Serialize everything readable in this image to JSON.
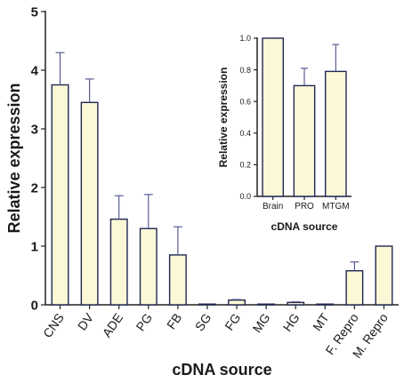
{
  "chart_data": [
    {
      "type": "bar",
      "categories": [
        "CNS",
        "DV",
        "ADE",
        "PG",
        "FB",
        "SG",
        "FG",
        "MG",
        "HG",
        "MT",
        "F. Repro",
        "M. Repro"
      ],
      "values": [
        3.75,
        3.45,
        1.46,
        1.3,
        0.85,
        0.01,
        0.08,
        0.01,
        0.04,
        0.005,
        0.58,
        1.0
      ],
      "error_upper": [
        4.3,
        3.85,
        1.86,
        1.88,
        1.33,
        0.01,
        0.09,
        0.01,
        0.05,
        0.005,
        0.73,
        1.0
      ],
      "title": "",
      "xlabel": "cDNA source",
      "ylabel": "Relative expression",
      "ylim": [
        0,
        5
      ],
      "yticks": [
        "0",
        "1",
        "2",
        "3",
        "4",
        "5"
      ],
      "grid": false,
      "bar_color": "#fbf8d6",
      "edge_color": "#1f2752"
    },
    {
      "type": "bar",
      "categories": [
        "Brain",
        "PRO",
        "MTGM"
      ],
      "values": [
        1.0,
        0.7,
        0.79
      ],
      "error_upper": [
        1.0,
        0.81,
        0.96
      ],
      "title": "",
      "xlabel": "cDNA source",
      "ylabel": "Relative expression",
      "ylim": [
        0,
        1.0
      ],
      "yticks": [
        "0.0",
        "0.2",
        "0.4",
        "0.6",
        "0.8",
        "1.0"
      ],
      "grid": false,
      "placement": "inset top-right",
      "bar_color": "#fbf8d6",
      "edge_color": "#1f2752"
    }
  ]
}
